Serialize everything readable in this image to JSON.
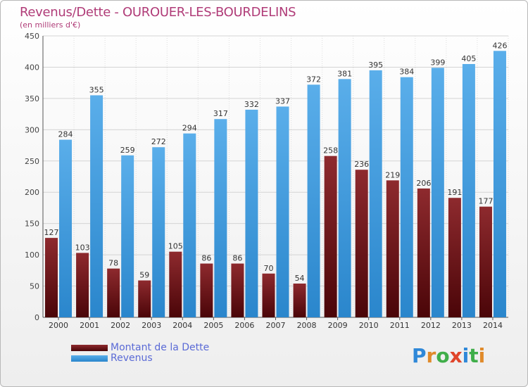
{
  "title": "Revenus/Dette - OUROUER-LES-BOURDELINS",
  "subtitle": "(en milliers d'€)",
  "logo_text": "Proxiti",
  "colors": {
    "dette": "#7a1a1e",
    "revenus": "#3a9de0",
    "title": "#b03c78",
    "legend_text": "#5a6ad6"
  },
  "chart_data": {
    "type": "bar",
    "categories": [
      "2000",
      "2001",
      "2002",
      "2003",
      "2004",
      "2005",
      "2006",
      "2007",
      "2008",
      "2009",
      "2010",
      "2011",
      "2012",
      "2013",
      "2014"
    ],
    "series": [
      {
        "name": "Montant de la Dette",
        "values": [
          127,
          103,
          78,
          59,
          105,
          86,
          86,
          70,
          54,
          258,
          236,
          219,
          206,
          191,
          177
        ]
      },
      {
        "name": "Revenus",
        "values": [
          284,
          355,
          259,
          272,
          294,
          317,
          332,
          337,
          372,
          381,
          395,
          384,
          399,
          405,
          426
        ]
      }
    ],
    "ylim": [
      0,
      450
    ],
    "yticks": [
      0,
      50,
      100,
      150,
      200,
      250,
      300,
      350,
      400,
      450
    ],
    "grid": true,
    "legend_position": "bottom-left"
  },
  "legend": {
    "dette_label": "Montant de la Dette",
    "revenus_label": "Revenus"
  }
}
